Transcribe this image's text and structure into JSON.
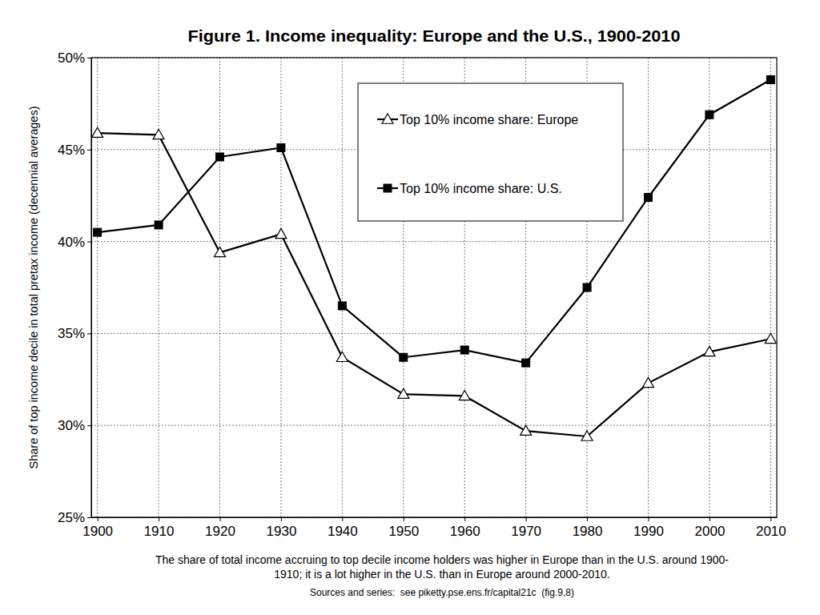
{
  "chart_data": {
    "type": "line",
    "title": "Figure 1. Income inequality: Europe and the U.S., 1900-2010",
    "y_label": "Share of top income decile in total pretax income (decennial averages)",
    "annotations": [
      "The share of total income accruing to top decile income holders was higher in Europe than in the U.S. around 1900-",
      "1910; it is a lot higher in the U.S. than in Europe around 2000-2010."
    ],
    "source": "Sources and series:  see piketty.pse.ens.fr/capital21c  (fig.9,8)",
    "x": [
      1900,
      1910,
      1920,
      1930,
      1940,
      1950,
      1960,
      1970,
      1980,
      1990,
      2000,
      2010
    ],
    "series": [
      {
        "name": "Top 10% income share: Europe",
        "color": "#000000",
        "marker": "triangle",
        "line_style": "solid",
        "values": [
          45.9,
          45.8,
          39.4,
          40.4,
          33.7,
          31.7,
          31.6,
          29.7,
          29.4,
          32.3,
          34.0,
          34.7
        ]
      },
      {
        "name": "Top 10% income share: U.S.",
        "color": "#000000",
        "marker": "square",
        "line_style": "solid",
        "values": [
          40.5,
          40.9,
          44.6,
          45.1,
          36.5,
          33.7,
          34.1,
          33.4,
          37.5,
          42.4,
          46.9,
          48.8
        ]
      }
    ],
    "xlim": [
      1899,
      2011
    ],
    "xticks": [
      1900,
      1910,
      1920,
      1930,
      1940,
      1950,
      1960,
      1970,
      1980,
      1990,
      2000,
      2010
    ],
    "ylim": [
      25,
      50
    ],
    "yticks": [
      {
        "value": 25,
        "label": "25%"
      },
      {
        "value": 30,
        "label": "30%"
      },
      {
        "value": 35,
        "label": "35%"
      },
      {
        "value": 40,
        "label": "40%"
      },
      {
        "value": 45,
        "label": "45%"
      },
      {
        "value": 50,
        "label": "50%"
      }
    ],
    "grid": true,
    "legend": "top-center"
  }
}
